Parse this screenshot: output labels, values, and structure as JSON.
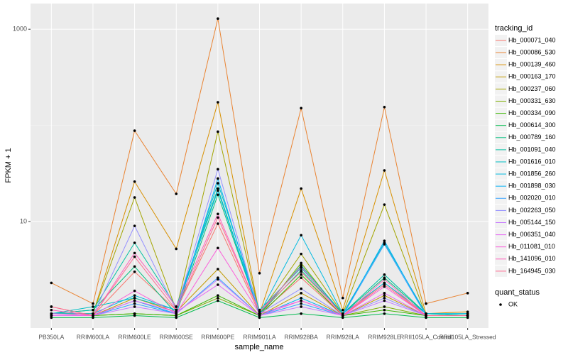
{
  "chart_data": {
    "type": "line",
    "x_label": "sample_name",
    "y_label": "FPKM + 1",
    "legend_title": "tracking_id",
    "legend_position": "right",
    "point_legend_title": "quant_status",
    "point_legend_label": "OK",
    "log_y": true,
    "grid": true,
    "categories": [
      "PB350LA",
      "RRIM600LA",
      "RRIM600LE",
      "RRIM600SE",
      "RRIM600PE",
      "RRIM901LA",
      "RRIM928BA",
      "RRIM928LA",
      "RRIM928LE",
      "RRII105LA_Control",
      "RRII105LA_Stressed"
    ],
    "ylim": [
      0.78,
      1850
    ],
    "yticks": [
      10,
      1000
    ],
    "series": [
      {
        "name": "Hb_000071_040",
        "color": "#F8766D",
        "values": [
          1.3,
          1.05,
          3.0,
          1.2,
          9.5,
          1.1,
          2.6,
          1.05,
          2.3,
          1.05,
          1.05
        ]
      },
      {
        "name": "Hb_000086_530",
        "color": "#EA8331",
        "values": [
          2.3,
          1.4,
          88,
          19.4,
          1290,
          2.9,
          151,
          1.6,
          155,
          1.4,
          1.8
        ]
      },
      {
        "name": "Hb_000139_460",
        "color": "#D89000",
        "values": [
          1.1,
          1.1,
          26,
          5.2,
          174,
          1.1,
          22,
          1.2,
          34,
          1.1,
          1.15
        ]
      },
      {
        "name": "Hb_000163_170",
        "color": "#C09B00",
        "values": [
          1.05,
          1.05,
          1.6,
          1.15,
          3.2,
          1.05,
          1.8,
          1.05,
          1.7,
          1.05,
          1.05
        ]
      },
      {
        "name": "Hb_000237_060",
        "color": "#A3A500",
        "values": [
          1.1,
          1.1,
          17.8,
          1.2,
          86,
          1.1,
          4.6,
          1.1,
          15,
          1.05,
          1.05
        ]
      },
      {
        "name": "Hb_000331_630",
        "color": "#7CAE00",
        "values": [
          1.05,
          1.05,
          1.1,
          1.05,
          1.6,
          1.05,
          3.7,
          1.05,
          1.3,
          1.05,
          1.05
        ]
      },
      {
        "name": "Hb_000334_090",
        "color": "#39B600",
        "values": [
          1.05,
          1.05,
          1.1,
          1.05,
          1.7,
          1.05,
          2.8,
          1.05,
          1.2,
          1.05,
          1.05
        ]
      },
      {
        "name": "Hb_000614_300",
        "color": "#00BB4E",
        "values": [
          1.0,
          1.0,
          1.05,
          1.0,
          1.5,
          1.0,
          1.1,
          1.0,
          1.1,
          1.0,
          1.0
        ]
      },
      {
        "name": "Hb_000789_160",
        "color": "#00BF7D",
        "values": [
          1.1,
          1.2,
          3.4,
          1.1,
          19,
          1.1,
          3.1,
          1.1,
          2.6,
          1.1,
          1.05
        ]
      },
      {
        "name": "Hb_001091_040",
        "color": "#00C1A3",
        "values": [
          1.1,
          1.2,
          6.0,
          1.3,
          22,
          1.1,
          3.5,
          1.1,
          2.8,
          1.1,
          1.05
        ]
      },
      {
        "name": "Hb_001616_010",
        "color": "#00BFC4",
        "values": [
          1.1,
          1.3,
          1.6,
          1.2,
          25,
          1.2,
          3.3,
          1.1,
          6.0,
          1.1,
          1.1
        ]
      },
      {
        "name": "Hb_001856_260",
        "color": "#00BAE0",
        "values": [
          1.1,
          1.1,
          1.7,
          1.2,
          21,
          1.1,
          7.2,
          1.1,
          2.3,
          1.1,
          1.1
        ]
      },
      {
        "name": "Hb_001898_030",
        "color": "#00B0F6",
        "values": [
          1.05,
          1.05,
          1.5,
          1.1,
          28,
          1.05,
          1.6,
          1.05,
          6.3,
          1.05,
          1.05
        ]
      },
      {
        "name": "Hb_002020_010",
        "color": "#35A2FF",
        "values": [
          1.05,
          1.05,
          1.4,
          1.1,
          2.6,
          1.05,
          1.4,
          1.05,
          5.8,
          1.05,
          1.05
        ]
      },
      {
        "name": "Hb_002263_050",
        "color": "#9590FF",
        "values": [
          1.1,
          1.05,
          9.0,
          1.2,
          35,
          1.1,
          2.0,
          1.05,
          1.6,
          1.05,
          1.05
        ]
      },
      {
        "name": "Hb_005144_150",
        "color": "#C77CFF",
        "values": [
          1.05,
          1.05,
          1.3,
          1.1,
          2.5,
          1.05,
          1.3,
          1.05,
          1.5,
          1.05,
          1.05
        ]
      },
      {
        "name": "Hb_006351_040",
        "color": "#E76BF3",
        "values": [
          1.05,
          1.05,
          1.5,
          1.15,
          2.2,
          1.05,
          1.5,
          1.05,
          1.8,
          1.05,
          1.05
        ]
      },
      {
        "name": "Hb_011081_010",
        "color": "#FA62DB",
        "values": [
          1.1,
          1.05,
          1.9,
          1.1,
          5.3,
          1.1,
          1.5,
          1.05,
          2.1,
          1.05,
          1.05
        ]
      },
      {
        "name": "Hb_141096_010",
        "color": "#FF62BC",
        "values": [
          1.2,
          1.05,
          4.7,
          1.3,
          12,
          1.15,
          3.4,
          1.05,
          2.5,
          1.05,
          1.05
        ]
      },
      {
        "name": "Hb_164945_030",
        "color": "#FF6C91",
        "values": [
          1.3,
          1.05,
          4.3,
          1.2,
          11,
          1.15,
          3.0,
          1.05,
          2.2,
          1.05,
          1.05
        ]
      }
    ]
  }
}
